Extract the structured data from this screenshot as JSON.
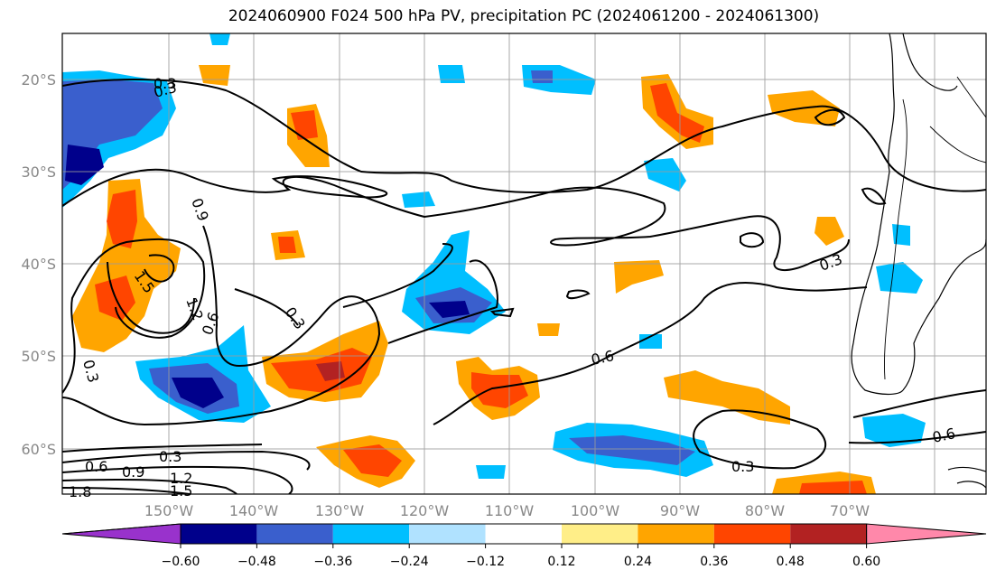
{
  "title": "2024060900 F024 500 hPa PV, precipitation PC (2024061200 - 2024061300)",
  "lat_labels": [
    "20°S",
    "30°S",
    "40°S",
    "50°S",
    "60°S"
  ],
  "lon_labels": [
    "150°W",
    "140°W",
    "130°W",
    "120°W",
    "110°W",
    "100°W",
    "90°W",
    "80°W",
    "70°W"
  ],
  "colorbar": {
    "colors": [
      "#9932cc",
      "#00008b",
      "#3a5fcd",
      "#00bfff",
      "#b0e2ff",
      "#ffffff",
      "#ffee88",
      "#ffa500",
      "#ff4500",
      "#b22222",
      "#ff88aa"
    ],
    "ticks": [
      "−0.60",
      "−0.48",
      "−0.36",
      "−0.24",
      "−0.12",
      "0.12",
      "0.24",
      "0.36",
      "0.48",
      "0.60"
    ]
  },
  "contour_labels": [
    "0.3",
    "0.9",
    "1.5",
    "1.2",
    "0.6",
    "0.3",
    "0.3",
    "0.6",
    "0.3",
    "0.3",
    "0.6",
    "0.6",
    "0.9",
    "1.2",
    "1.5",
    "1.8",
    "0.3",
    "0.3"
  ]
}
